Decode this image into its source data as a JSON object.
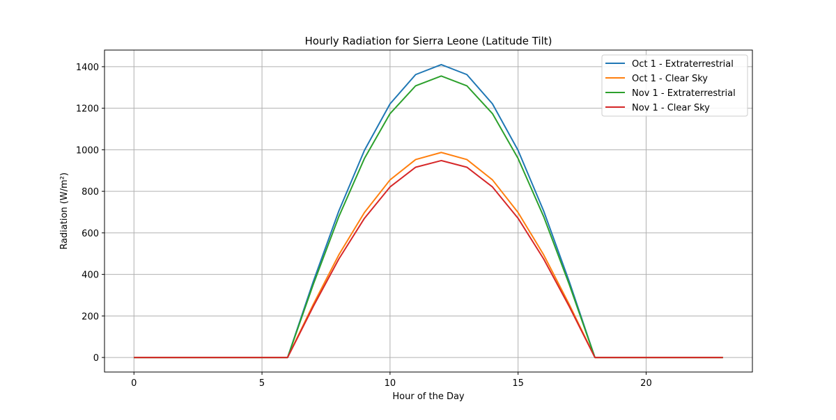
{
  "chart_data": {
    "type": "line",
    "title": "Hourly Radiation for Sierra Leone (Latitude Tilt)",
    "xlabel": "Hour of the Day",
    "ylabel": "Radiation (W/m²)",
    "xlim": [
      -1.15,
      24.15
    ],
    "ylim": [
      -70,
      1480
    ],
    "xticks": [
      0,
      5,
      10,
      15,
      20
    ],
    "yticks": [
      0,
      200,
      400,
      600,
      800,
      1000,
      1200,
      1400
    ],
    "grid": true,
    "legend_position": "top-right",
    "x": [
      0,
      1,
      2,
      3,
      4,
      5,
      6,
      7,
      8,
      9,
      10,
      11,
      12,
      13,
      14,
      15,
      16,
      17,
      18,
      19,
      20,
      21,
      22,
      23
    ],
    "series": [
      {
        "name": "Oct 1 - Extraterrestrial",
        "color": "#1f77b4",
        "values": [
          0,
          0,
          0,
          0,
          0,
          0,
          0,
          365,
          705,
          997,
          1221,
          1362,
          1410,
          1362,
          1221,
          997,
          705,
          365,
          0,
          0,
          0,
          0,
          0,
          0
        ]
      },
      {
        "name": "Oct 1 - Clear Sky",
        "color": "#ff7f0e",
        "values": [
          0,
          0,
          0,
          0,
          0,
          0,
          0,
          255,
          494,
          698,
          855,
          953,
          987,
          953,
          855,
          698,
          494,
          255,
          0,
          0,
          0,
          0,
          0,
          0
        ]
      },
      {
        "name": "Nov 1 - Extraterrestrial",
        "color": "#2ca02c",
        "values": [
          0,
          0,
          0,
          0,
          0,
          0,
          0,
          351,
          678,
          958,
          1174,
          1308,
          1355,
          1308,
          1174,
          958,
          678,
          351,
          0,
          0,
          0,
          0,
          0,
          0
        ]
      },
      {
        "name": "Nov 1 - Clear Sky",
        "color": "#d62728",
        "values": [
          0,
          0,
          0,
          0,
          0,
          0,
          0,
          245,
          474,
          670,
          821,
          916,
          948,
          916,
          821,
          670,
          474,
          245,
          0,
          0,
          0,
          0,
          0,
          0
        ]
      }
    ]
  }
}
